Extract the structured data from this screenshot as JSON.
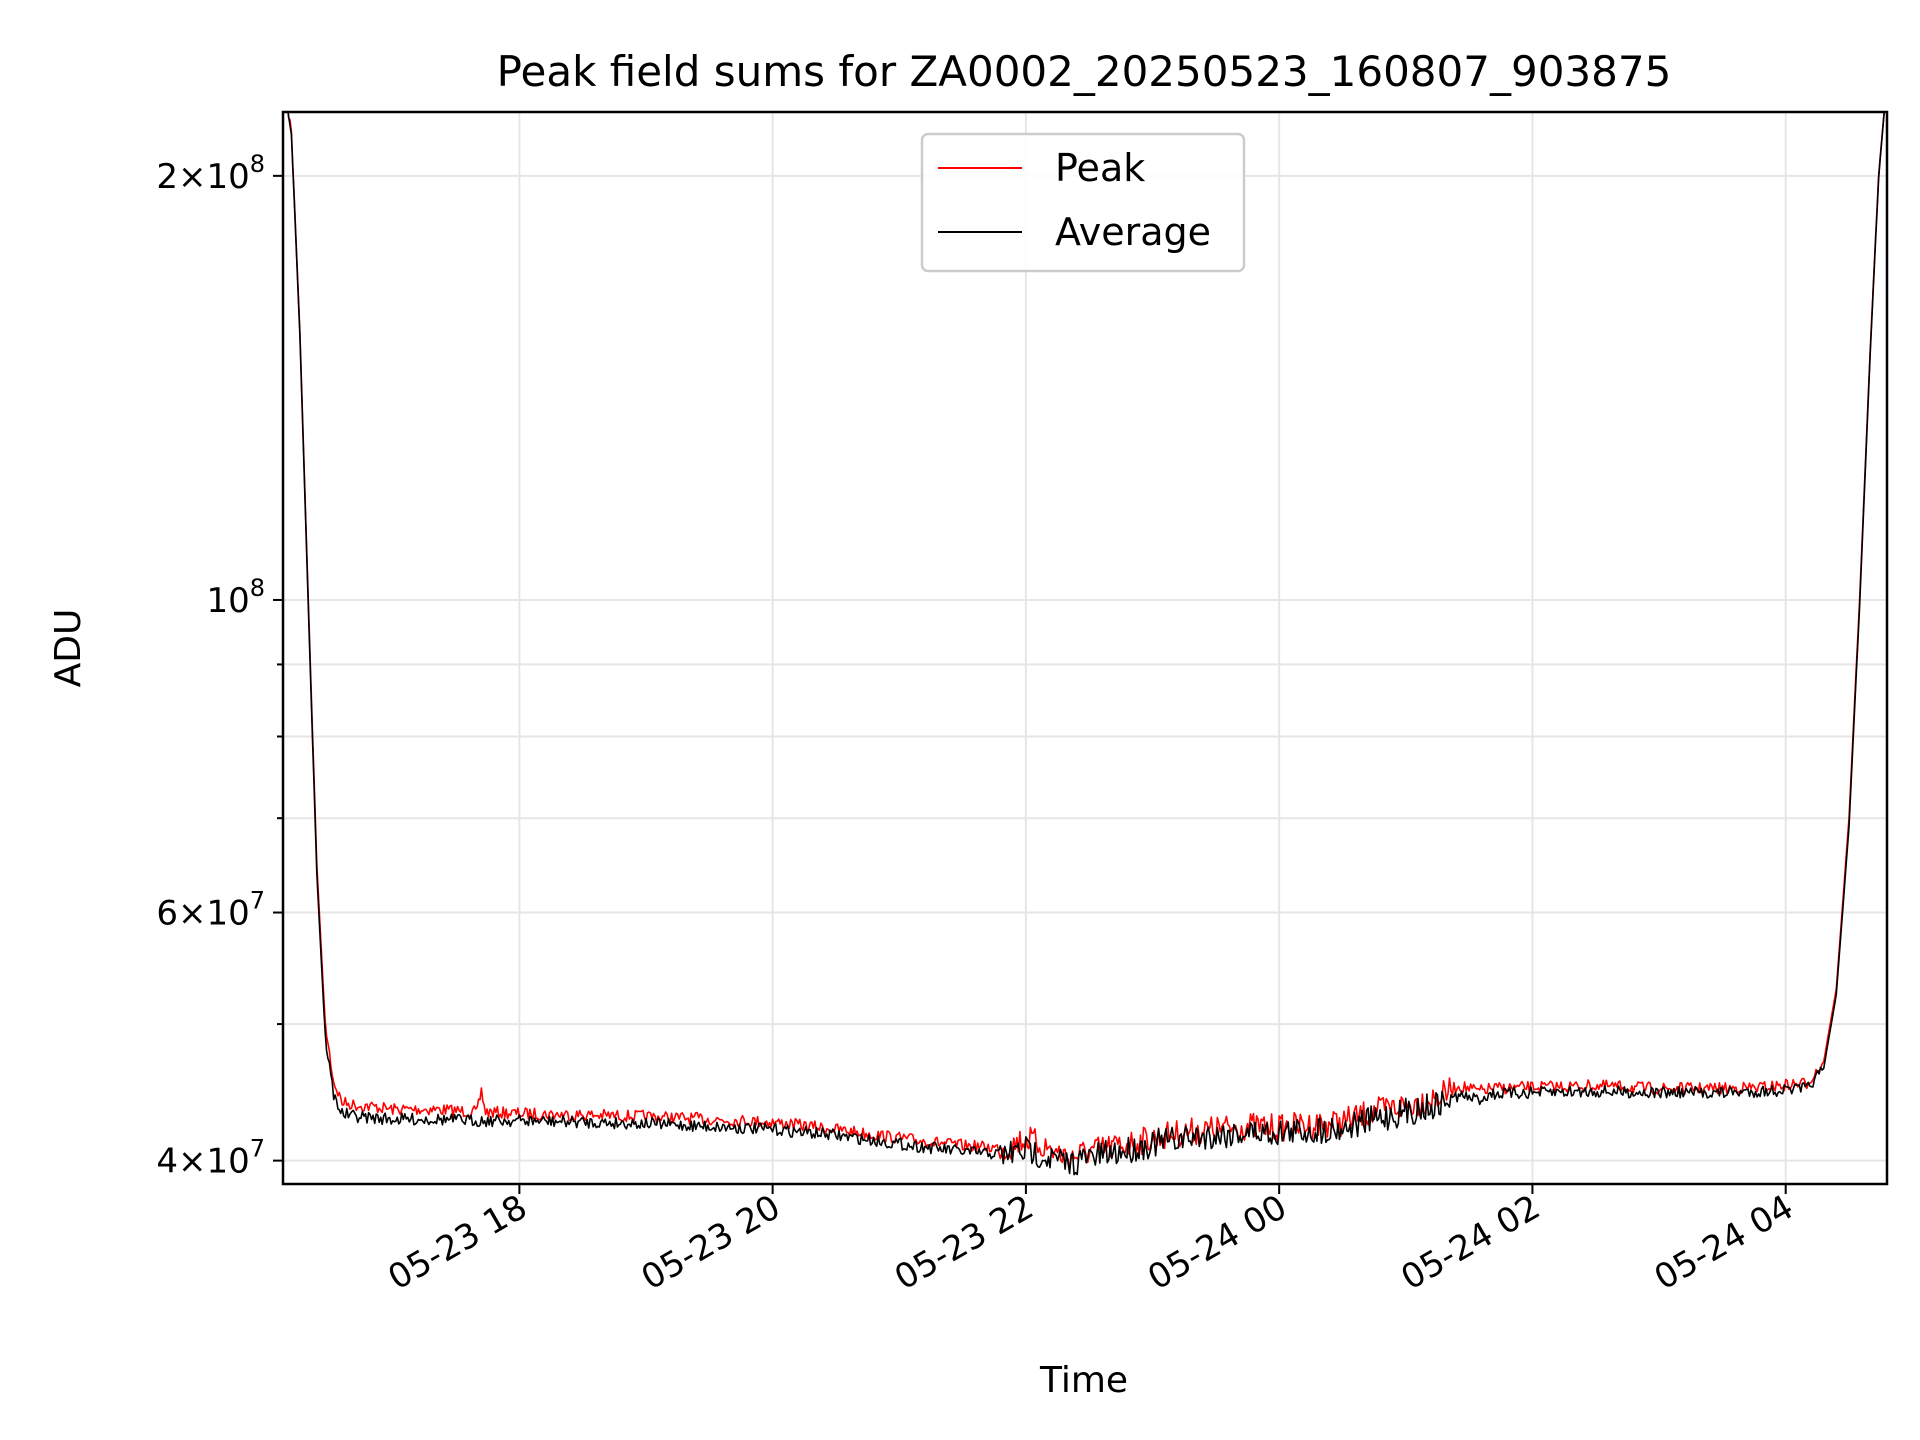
{
  "chart_data": {
    "type": "line",
    "title": "Peak field sums for ZA0002_20250523_160807_903875",
    "xlabel": "Time",
    "ylabel": "ADU",
    "yscale": "log",
    "xlim": [
      "2025-05-23T16:08",
      "2025-05-24T04:48"
    ],
    "ylim": [
      38500000,
      222000000
    ],
    "grid": true,
    "legend_position": "upper center",
    "x_ticks": [
      {
        "x": "2025-05-23T18:00",
        "label": "05-23 18"
      },
      {
        "x": "2025-05-23T20:00",
        "label": "05-23 20"
      },
      {
        "x": "2025-05-23T22:00",
        "label": "05-23 22"
      },
      {
        "x": "2025-05-24T00:00",
        "label": "05-24 00"
      },
      {
        "x": "2025-05-24T02:00",
        "label": "05-24 02"
      },
      {
        "x": "2025-05-24T04:00",
        "label": "05-24 04"
      }
    ],
    "y_ticks": [
      {
        "value": 40000000,
        "base": "4×10",
        "exp": "7"
      },
      {
        "value": 60000000,
        "base": "6×10",
        "exp": "7"
      },
      {
        "value": 100000000,
        "base": "10",
        "exp": "8"
      },
      {
        "value": 200000000,
        "base": "2×10",
        "exp": "8"
      }
    ],
    "series": [
      {
        "name": "Peak",
        "color": "#ff0000",
        "x": [
          "2025-05-23T16:10",
          "2025-05-23T16:12",
          "2025-05-23T16:16",
          "2025-05-23T16:20",
          "2025-05-23T16:24",
          "2025-05-23T16:28",
          "2025-05-23T16:32",
          "2025-05-23T16:36",
          "2025-05-23T16:42",
          "2025-05-23T16:50",
          "2025-05-23T17:00",
          "2025-05-23T17:20",
          "2025-05-23T17:40",
          "2025-05-23T17:42",
          "2025-05-23T17:44",
          "2025-05-23T18:00",
          "2025-05-23T18:30",
          "2025-05-23T19:00",
          "2025-05-23T19:30",
          "2025-05-23T20:00",
          "2025-05-23T20:30",
          "2025-05-23T21:00",
          "2025-05-23T21:30",
          "2025-05-23T21:50",
          "2025-05-23T22:00",
          "2025-05-23T22:20",
          "2025-05-23T22:30",
          "2025-05-23T22:45",
          "2025-05-23T23:00",
          "2025-05-23T23:15",
          "2025-05-23T23:30",
          "2025-05-23T23:45",
          "2025-05-24T00:00",
          "2025-05-24T00:15",
          "2025-05-24T00:30",
          "2025-05-24T00:45",
          "2025-05-24T01:00",
          "2025-05-24T01:15",
          "2025-05-24T01:25",
          "2025-05-24T01:35",
          "2025-05-24T01:40",
          "2025-05-24T02:00",
          "2025-05-24T02:30",
          "2025-05-24T03:00",
          "2025-05-24T03:30",
          "2025-05-24T03:50",
          "2025-05-24T04:10",
          "2025-05-24T04:18",
          "2025-05-24T04:24",
          "2025-05-24T04:30",
          "2025-05-24T04:35",
          "2025-05-24T04:40",
          "2025-05-24T04:44",
          "2025-05-24T04:47"
        ],
        "y": [
          225000000,
          215000000,
          155000000,
          100000000,
          65000000,
          50000000,
          45500000,
          44000000,
          43800000,
          43700000,
          43500000,
          43500000,
          43300000,
          44800000,
          43300000,
          43200000,
          43100000,
          43000000,
          42800000,
          42600000,
          42100000,
          41500000,
          41000000,
          40800000,
          41500000,
          40200000,
          40600000,
          41000000,
          41500000,
          41900000,
          42100000,
          42300000,
          42200000,
          42400000,
          42600000,
          43300000,
          43800000,
          44300000,
          45200000,
          44800000,
          45000000,
          45100000,
          45200000,
          45000000,
          45000000,
          45100000,
          45400000,
          47000000,
          53000000,
          70000000,
          100000000,
          150000000,
          200000000,
          225000000
        ]
      },
      {
        "name": "Average",
        "color": "#000000",
        "x": [
          "2025-05-23T16:10",
          "2025-05-23T16:12",
          "2025-05-23T16:16",
          "2025-05-23T16:20",
          "2025-05-23T16:24",
          "2025-05-23T16:28",
          "2025-05-23T16:32",
          "2025-05-23T16:36",
          "2025-05-23T16:42",
          "2025-05-23T16:50",
          "2025-05-23T17:00",
          "2025-05-23T17:20",
          "2025-05-23T17:40",
          "2025-05-23T18:00",
          "2025-05-23T18:30",
          "2025-05-23T19:00",
          "2025-05-23T19:30",
          "2025-05-23T20:00",
          "2025-05-23T20:30",
          "2025-05-23T21:00",
          "2025-05-23T21:30",
          "2025-05-23T21:50",
          "2025-05-23T22:00",
          "2025-05-23T22:20",
          "2025-05-23T22:30",
          "2025-05-23T22:45",
          "2025-05-23T23:00",
          "2025-05-23T23:15",
          "2025-05-23T23:30",
          "2025-05-23T23:45",
          "2025-05-24T00:00",
          "2025-05-24T00:15",
          "2025-05-24T00:30",
          "2025-05-24T00:45",
          "2025-05-24T01:00",
          "2025-05-24T01:15",
          "2025-05-24T01:25",
          "2025-05-24T01:35",
          "2025-05-24T01:40",
          "2025-05-24T02:00",
          "2025-05-24T02:30",
          "2025-05-24T03:00",
          "2025-05-24T03:30",
          "2025-05-24T03:50",
          "2025-05-24T04:10",
          "2025-05-24T04:18",
          "2025-05-24T04:24",
          "2025-05-24T04:30",
          "2025-05-24T04:35",
          "2025-05-24T04:40",
          "2025-05-24T04:44",
          "2025-05-24T04:47"
        ],
        "y": [
          225000000,
          214000000,
          154000000,
          99000000,
          64000000,
          49000000,
          44500000,
          43200000,
          43000000,
          42900000,
          42800000,
          42800000,
          42700000,
          42700000,
          42600000,
          42500000,
          42300000,
          42100000,
          41700000,
          41100000,
          40600000,
          40400000,
          40700000,
          39800000,
          40200000,
          40600000,
          41100000,
          41500000,
          41700000,
          41900000,
          41900000,
          42000000,
          42200000,
          42800000,
          43300000,
          43800000,
          44500000,
          44200000,
          44600000,
          44700000,
          44800000,
          44700000,
          44700000,
          44800000,
          45000000,
          46500000,
          52500000,
          69000000,
          99000000,
          149000000,
          199000000,
          225000000
        ]
      }
    ]
  }
}
